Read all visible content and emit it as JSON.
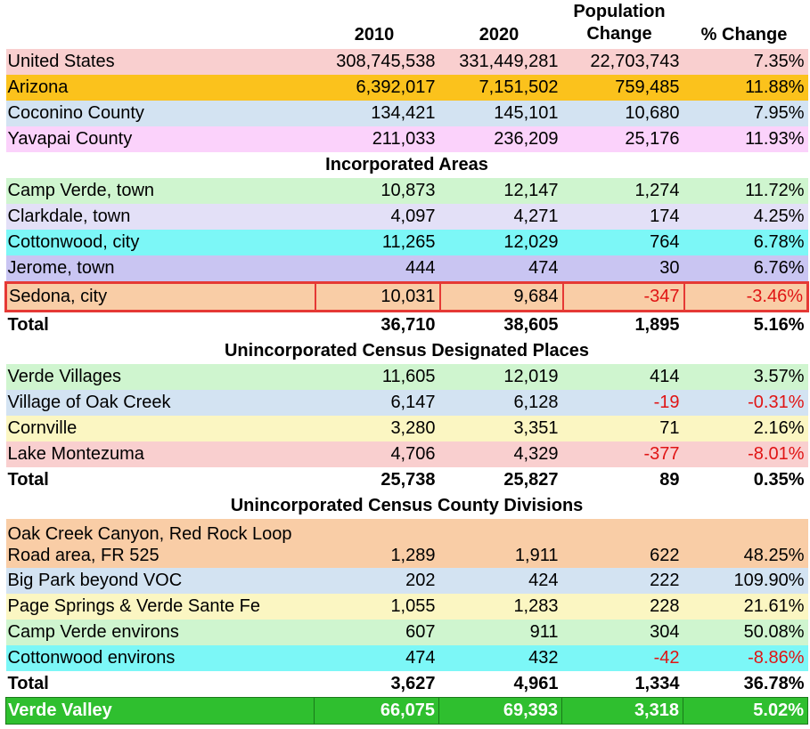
{
  "headers": {
    "y2010": "2010",
    "y2020": "2020",
    "pop_change_line1": "Population",
    "pop_change_line2": "Change",
    "pct_change": "% Change"
  },
  "rows": [
    {
      "kind": "data",
      "name": "United States",
      "y2010": "308,745,538",
      "y2020": "331,449,281",
      "change": "22,703,743",
      "pct": "7.35%",
      "bg": "#f9cfcf"
    },
    {
      "kind": "data",
      "name": "Arizona",
      "y2010": "6,392,017",
      "y2020": "7,151,502",
      "change": "759,485",
      "pct": "11.88%",
      "bg": "#fbc21c"
    },
    {
      "kind": "data",
      "name": "Coconino County",
      "y2010": "134,421",
      "y2020": "145,101",
      "change": "10,680",
      "pct": "7.95%",
      "bg": "#d3e3f2"
    },
    {
      "kind": "data",
      "name": "Yavapai County",
      "y2010": "211,033",
      "y2020": "236,209",
      "change": "25,176",
      "pct": "11.93%",
      "bg": "#fbd2fb"
    },
    {
      "kind": "section",
      "name": "Incorporated Areas"
    },
    {
      "kind": "data",
      "name": "Camp Verde, town",
      "y2010": "10,873",
      "y2020": "12,147",
      "change": "1,274",
      "pct": "11.72%",
      "bg": "#cff5cf"
    },
    {
      "kind": "data",
      "name": "Clarkdale, town",
      "y2010": "4,097",
      "y2020": "4,271",
      "change": "174",
      "pct": "4.25%",
      "bg": "#e3e0f7"
    },
    {
      "kind": "data",
      "name": "Cottonwood, city",
      "y2010": "11,265",
      "y2020": "12,029",
      "change": "764",
      "pct": "6.78%",
      "bg": "#7cf7f7"
    },
    {
      "kind": "data",
      "name": "Jerome, town",
      "y2010": "444",
      "y2020": "474",
      "change": "30",
      "pct": "6.76%",
      "bg": "#c9c5f2"
    },
    {
      "kind": "data",
      "name": "Sedona, city",
      "y2010": "10,031",
      "y2020": "9,684",
      "change": "-347",
      "pct": "-3.46%",
      "bg": "#f9cda6",
      "neg": true,
      "highlight": true
    },
    {
      "kind": "total",
      "name": "Total",
      "y2010": "36,710",
      "y2020": "38,605",
      "change": "1,895",
      "pct": "5.16%"
    },
    {
      "kind": "section",
      "name": "Unincorporated Census Designated Places"
    },
    {
      "kind": "data",
      "name": "Verde Villages",
      "y2010": "11,605",
      "y2020": "12,019",
      "change": "414",
      "pct": "3.57%",
      "bg": "#cff5cf"
    },
    {
      "kind": "data",
      "name": "Village of Oak Creek",
      "y2010": "6,147",
      "y2020": "6,128",
      "change": "-19",
      "pct": "-0.31%",
      "bg": "#d3e3f2",
      "neg": true
    },
    {
      "kind": "data",
      "name": "Cornville",
      "y2010": "3,280",
      "y2020": "3,351",
      "change": "71",
      "pct": "2.16%",
      "bg": "#fbf6c2"
    },
    {
      "kind": "data",
      "name": "Lake Montezuma",
      "y2010": "4,706",
      "y2020": "4,329",
      "change": "-377",
      "pct": "-8.01%",
      "bg": "#f9cfcf",
      "neg": true
    },
    {
      "kind": "total",
      "name": "Total",
      "y2010": "25,738",
      "y2020": "25,827",
      "change": "89",
      "pct": "0.35%"
    },
    {
      "kind": "section",
      "name": "Unincorporated Census County Divisions"
    },
    {
      "kind": "tall",
      "name": "Oak Creek Canyon, Red Rock Loop Road area, FR 525",
      "y2010": "1,289",
      "y2020": "1,911",
      "change": "622",
      "pct": "48.25%",
      "bg": "#f9cda6"
    },
    {
      "kind": "data",
      "name": "Big Park beyond VOC",
      "y2010": "202",
      "y2020": "424",
      "change": "222",
      "pct": "109.90%",
      "bg": "#d3e3f2"
    },
    {
      "kind": "data",
      "name": "Page Springs & Verde Sante Fe",
      "y2010": "1,055",
      "y2020": "1,283",
      "change": "228",
      "pct": "21.61%",
      "bg": "#fbf6c2"
    },
    {
      "kind": "data",
      "name": "Camp Verde environs",
      "y2010": "607",
      "y2020": "911",
      "change": "304",
      "pct": "50.08%",
      "bg": "#cff5cf"
    },
    {
      "kind": "data",
      "name": "Cottonwood environs",
      "y2010": "474",
      "y2020": "432",
      "change": "-42",
      "pct": "-8.86%",
      "bg": "#7cf7f7",
      "neg": true
    },
    {
      "kind": "total",
      "name": "Total",
      "y2010": "3,627",
      "y2020": "4,961",
      "change": "1,334",
      "pct": "36.78%"
    },
    {
      "kind": "vv",
      "name": "Verde Valley",
      "y2010": "66,075",
      "y2020": "69,393",
      "change": "3,318",
      "pct": "5.02%",
      "bg": "#2fbf2f"
    }
  ]
}
